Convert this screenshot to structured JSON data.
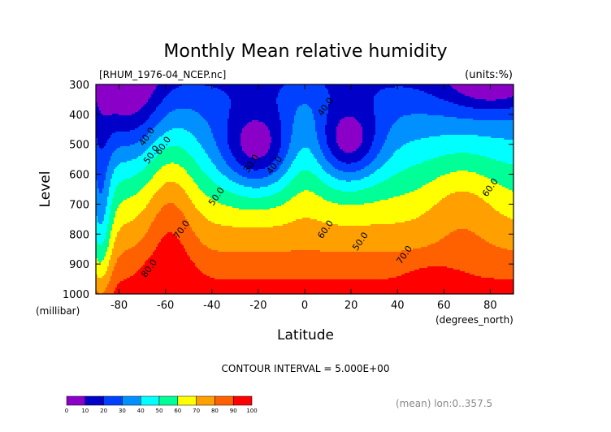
{
  "chart_data": {
    "type": "filled-contour",
    "title": "Monthly Mean relative humidity",
    "file_label": "[RHUM_1976-04_NCEP.nc]",
    "units_label": "(units:%)",
    "xlabel": "Latitude",
    "x_units": "(degrees_north)",
    "ylabel": "Level",
    "y_units": "(millibar)",
    "xlim": [
      -90,
      90
    ],
    "ylim": [
      1000,
      300
    ],
    "x_ticks": [
      -80,
      -60,
      -40,
      -20,
      0,
      20,
      40,
      60,
      80
    ],
    "y_ticks": [
      300,
      400,
      500,
      600,
      700,
      800,
      900,
      1000
    ],
    "x_tick_labels": [
      "-80",
      "-60",
      "-40",
      "-20",
      "0",
      "20",
      "40",
      "60",
      "80"
    ],
    "y_tick_labels": [
      "300",
      "400",
      "500",
      "600",
      "700",
      "800",
      "900",
      "1000"
    ],
    "contour_interval_label": "CONTOUR INTERVAL = 5.000E+00",
    "contour_labels": [
      {
        "text": "40.0",
        "lat": -67,
        "lev": 480
      },
      {
        "text": "50.0",
        "lat": -65,
        "lev": 540
      },
      {
        "text": "60.0",
        "lat": -60,
        "lev": 510
      },
      {
        "text": "30.0",
        "lat": -22,
        "lev": 570
      },
      {
        "text": "40.0",
        "lat": -12,
        "lev": 575
      },
      {
        "text": "40.0",
        "lat": 10,
        "lev": 380
      },
      {
        "text": "50.0",
        "lat": -37,
        "lev": 680
      },
      {
        "text": "70.0",
        "lat": -52,
        "lev": 790
      },
      {
        "text": "80.0",
        "lat": -66,
        "lev": 920
      },
      {
        "text": "60.0",
        "lat": 10,
        "lev": 790
      },
      {
        "text": "50.0",
        "lat": 25,
        "lev": 830
      },
      {
        "text": "70.0",
        "lat": 44,
        "lev": 875
      },
      {
        "text": "60.0",
        "lat": 81,
        "lev": 650
      }
    ],
    "colorbar": {
      "levels": [
        "0",
        "10",
        "20",
        "30",
        "40",
        "50",
        "60",
        "70",
        "80",
        "90",
        "100"
      ],
      "colors": [
        "#8a00c8",
        "#0000c8",
        "#0040ff",
        "#0090ff",
        "#00ffff",
        "#00ff96",
        "#ffff00",
        "#ffa000",
        "#ff6000",
        "#ff0000"
      ]
    },
    "footer_note": "(mean) lon:0..357.5"
  }
}
